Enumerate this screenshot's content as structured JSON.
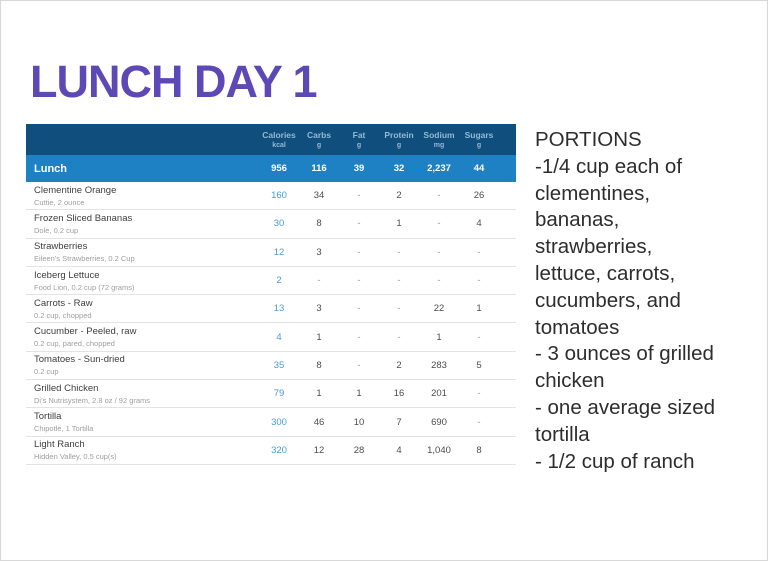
{
  "title": "LUNCH DAY 1",
  "table": {
    "columns": [
      {
        "label": "Calories",
        "unit": "kcal"
      },
      {
        "label": "Carbs",
        "unit": "g"
      },
      {
        "label": "Fat",
        "unit": "g"
      },
      {
        "label": "Protein",
        "unit": "g"
      },
      {
        "label": "Sodium",
        "unit": "mg"
      },
      {
        "label": "Sugars",
        "unit": "g"
      }
    ],
    "total": {
      "label": "Lunch",
      "values": [
        "956",
        "116",
        "39",
        "32",
        "2,237",
        "44"
      ]
    },
    "rows": [
      {
        "name": "Clementine Orange",
        "detail": "Cuttie, 2 ounce",
        "values": [
          "160",
          "34",
          "-",
          "2",
          "-",
          "26"
        ]
      },
      {
        "name": "Frozen Sliced Bananas",
        "detail": "Dole, 0.2 cup",
        "values": [
          "30",
          "8",
          "-",
          "1",
          "-",
          "4"
        ]
      },
      {
        "name": "Strawberries",
        "detail": "Eileen's Strawberries, 0.2 Cup",
        "values": [
          "12",
          "3",
          "-",
          "-",
          "-",
          "-"
        ]
      },
      {
        "name": "Iceberg Lettuce",
        "detail": "Food Lion, 0.2 cup (72 grams)",
        "values": [
          "2",
          "-",
          "-",
          "-",
          "-",
          "-"
        ]
      },
      {
        "name": "Carrots - Raw",
        "detail": "0.2 cup, chopped",
        "values": [
          "13",
          "3",
          "-",
          "-",
          "22",
          "1"
        ]
      },
      {
        "name": "Cucumber - Peeled, raw",
        "detail": "0.2 cup, pared, chopped",
        "values": [
          "4",
          "1",
          "-",
          "-",
          "1",
          "-"
        ]
      },
      {
        "name": "Tomatoes - Sun-dried",
        "detail": "0.2 cup",
        "values": [
          "35",
          "8",
          "-",
          "2",
          "283",
          "5"
        ]
      },
      {
        "name": "Grilled Chicken",
        "detail": "Di's Nutrisystem, 2.8 oz / 92 grams",
        "values": [
          "79",
          "1",
          "1",
          "16",
          "201",
          "-"
        ]
      },
      {
        "name": "Tortilla",
        "detail": "Chipotle, 1 Tortilla",
        "values": [
          "300",
          "46",
          "10",
          "7",
          "690",
          "-"
        ]
      },
      {
        "name": "Light Ranch",
        "detail": "Hidden Valley, 0.5 cup(s)",
        "values": [
          "320",
          "12",
          "28",
          "4",
          "1,040",
          "8"
        ]
      }
    ]
  },
  "portions": {
    "lines": [
      "PORTIONS",
      "-1/4 cup each of",
      "clementines,",
      "bananas,",
      "strawberries,",
      "lettuce, carrots,",
      "cucumbers, and",
      "tomatoes",
      "- 3 ounces of grilled",
      "chicken",
      "- one average sized",
      "tortilla",
      "- 1/2 cup of ranch"
    ]
  },
  "colors": {
    "title": "#5d49b5",
    "header_bg": "#0f4e7d",
    "header_text": "#93bad4",
    "total_bg": "#1e81c4",
    "total_text": "#ffffff",
    "calories_value": "#4a9bd5",
    "name_text": "#3d3d3d",
    "detail_text": "#9d9d9d",
    "value_text": "#4c4c4c",
    "dash_text": "#949494",
    "divider": "#e3e3e3",
    "portions_text": "#2d2d2d"
  }
}
